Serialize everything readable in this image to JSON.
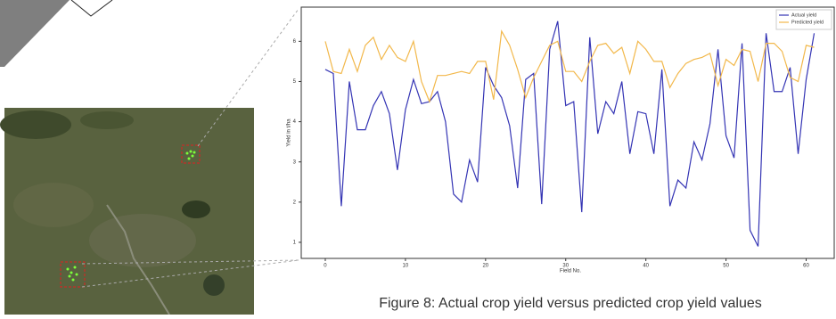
{
  "chart_data": {
    "type": "line",
    "caption": "Figure 8: Actual crop yield versus predicted crop yield values",
    "xlabel": "Field No.",
    "ylabel": "Yield in t/ha",
    "x": [
      0,
      1,
      2,
      3,
      4,
      5,
      6,
      7,
      8,
      9,
      10,
      11,
      12,
      13,
      14,
      15,
      16,
      17,
      18,
      19,
      20,
      21,
      22,
      23,
      24,
      25,
      26,
      27,
      28,
      29,
      30,
      31,
      32,
      33,
      34,
      35,
      36,
      37,
      38,
      39,
      40,
      41,
      42,
      43,
      44,
      45,
      46,
      47,
      48,
      49,
      50,
      51,
      52,
      53,
      54,
      55,
      56,
      57,
      58,
      59,
      60,
      61
    ],
    "series": [
      {
        "name": "Actual yield",
        "color": "#3434b4",
        "values": [
          5.3,
          5.2,
          1.9,
          5.0,
          3.8,
          3.8,
          4.4,
          4.75,
          4.2,
          2.8,
          4.3,
          5.05,
          4.45,
          4.5,
          4.75,
          4.0,
          2.2,
          2.0,
          3.05,
          2.5,
          5.35,
          4.9,
          4.6,
          3.9,
          2.35,
          5.05,
          5.2,
          1.95,
          5.8,
          6.5,
          4.4,
          4.5,
          1.75,
          6.1,
          3.7,
          4.5,
          4.2,
          5.0,
          3.2,
          4.25,
          4.2,
          3.2,
          5.3,
          1.9,
          2.55,
          2.35,
          3.5,
          3.05,
          3.95,
          5.8,
          3.65,
          3.1,
          5.95,
          1.3,
          0.9,
          6.2,
          4.75,
          4.75,
          5.35,
          3.2,
          5.05,
          6.2
        ]
      },
      {
        "name": "Predicted yield",
        "color": "#f2b84b",
        "values": [
          6.0,
          5.25,
          5.2,
          5.8,
          5.25,
          5.9,
          6.1,
          5.55,
          5.9,
          5.6,
          5.5,
          6.0,
          5.0,
          4.5,
          5.15,
          5.15,
          5.2,
          5.25,
          5.2,
          5.5,
          5.5,
          4.55,
          6.25,
          5.9,
          5.3,
          4.6,
          5.1,
          5.5,
          5.9,
          6.0,
          5.25,
          5.25,
          5.0,
          5.5,
          5.9,
          5.95,
          5.7,
          5.85,
          5.2,
          6.0,
          5.8,
          5.5,
          5.5,
          4.85,
          5.2,
          5.45,
          5.55,
          5.6,
          5.7,
          4.9,
          5.55,
          5.4,
          5.8,
          5.75,
          5.0,
          5.95,
          5.95,
          5.75,
          5.1,
          5.0,
          5.9,
          5.85
        ]
      }
    ],
    "xlim": [
      -3,
      63.5
    ],
    "ylim": [
      0.6,
      6.85
    ],
    "xticks": [
      0,
      10,
      20,
      30,
      40,
      50,
      60
    ],
    "yticks": [
      1,
      2,
      3,
      4,
      5,
      6
    ],
    "legend": "upper right"
  }
}
